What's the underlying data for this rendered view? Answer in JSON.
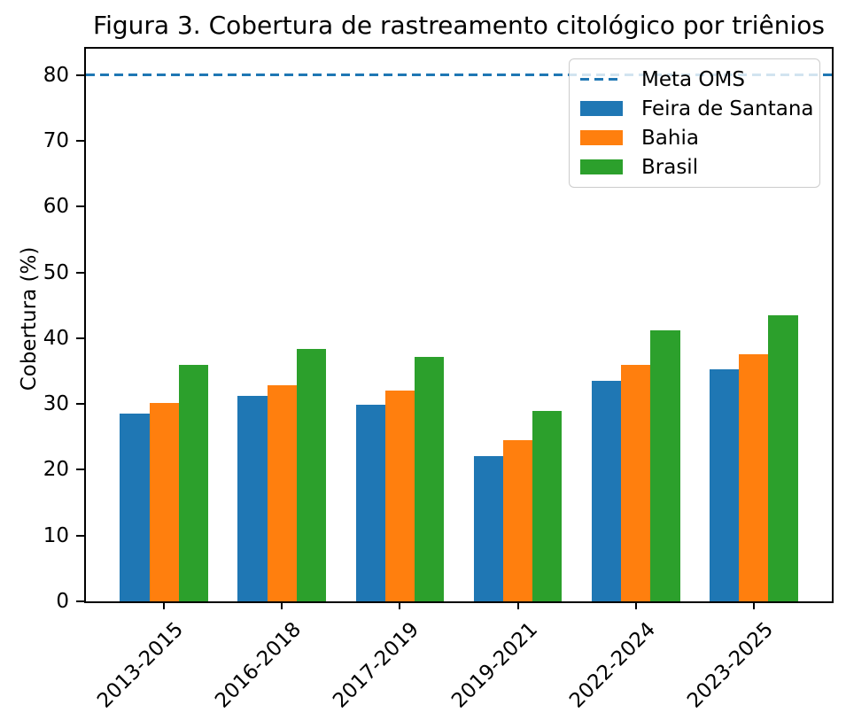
{
  "figure": {
    "title": "Figura 3. Cobertura de rastreamento citológico por triênios"
  },
  "chart_data": {
    "type": "bar",
    "title": "Figura 3. Cobertura de rastreamento citológico por triênios",
    "xlabel": "",
    "ylabel": "Cobertura (%)",
    "categories": [
      "2013-2015",
      "2016-2018",
      "2017-2019",
      "2019-2021",
      "2022-2024",
      "2023-2025"
    ],
    "series": [
      {
        "name": "Feira de Santana",
        "color": "#1f77b4",
        "values": [
          28.5,
          31.2,
          29.9,
          22.1,
          33.5,
          35.3
        ]
      },
      {
        "name": "Bahia",
        "color": "#ff7f0e",
        "values": [
          30.2,
          32.8,
          32.0,
          24.5,
          35.9,
          37.5
        ]
      },
      {
        "name": "Brasil",
        "color": "#2ca02c",
        "values": [
          35.9,
          38.4,
          37.2,
          28.9,
          41.2,
          43.5
        ]
      }
    ],
    "meta_line": {
      "label": "Meta OMS",
      "value": 80,
      "color": "#1f77b4",
      "style": "dashed"
    },
    "ylim": [
      0,
      84
    ],
    "yticks": [
      0,
      10,
      20,
      30,
      40,
      50,
      60,
      70,
      80
    ],
    "legend_position": "upper right",
    "grid": false,
    "bar_group_layout": {
      "bar_width_units": 0.25,
      "group_spacing_units": 1
    }
  }
}
